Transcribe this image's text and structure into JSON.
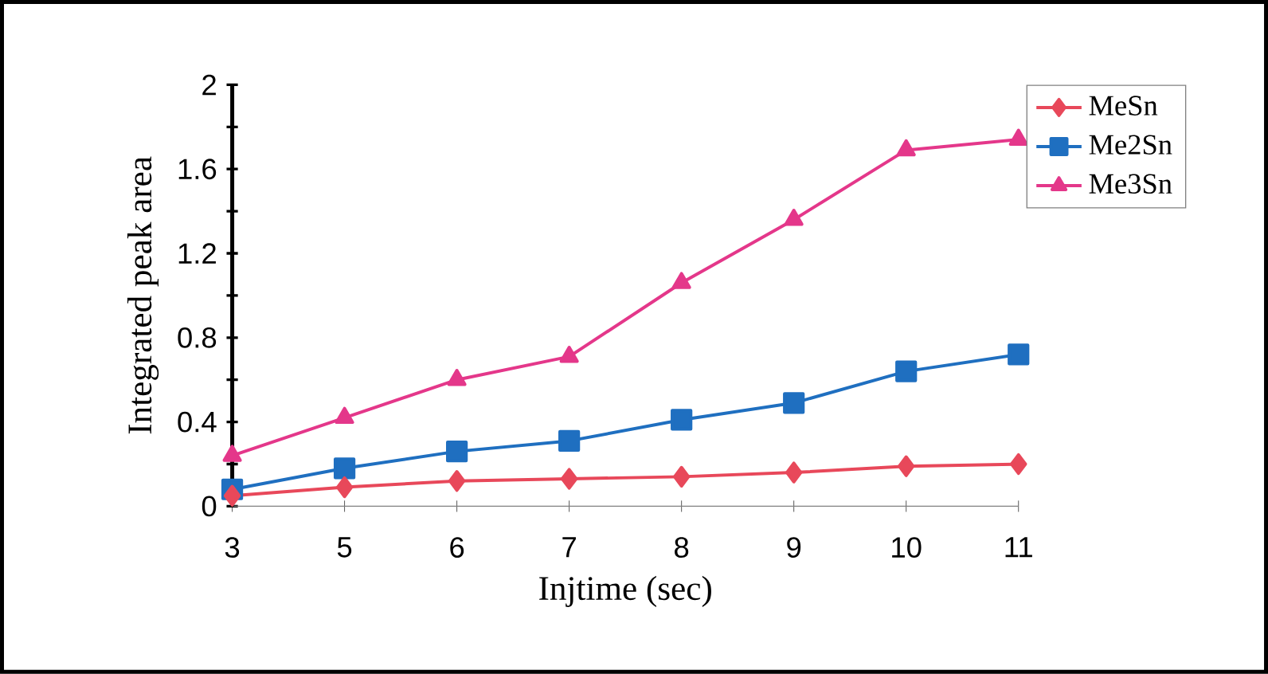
{
  "chart_data": {
    "type": "line",
    "xlabel": "Injtime (sec)",
    "ylabel": "Integrated peak area",
    "categories": [
      "3",
      "5",
      "6",
      "7",
      "8",
      "9",
      "10",
      "11"
    ],
    "series": [
      {
        "name": "MeSn",
        "color": "#e8485a",
        "marker": "diamond",
        "values": [
          0.05,
          0.09,
          0.12,
          0.13,
          0.14,
          0.16,
          0.19,
          0.2
        ]
      },
      {
        "name": "Me2Sn",
        "color": "#1f6fc0",
        "marker": "square",
        "values": [
          0.08,
          0.18,
          0.26,
          0.31,
          0.41,
          0.49,
          0.64,
          0.72
        ]
      },
      {
        "name": "Me3Sn",
        "color": "#e4378a",
        "marker": "triangle",
        "values": [
          0.24,
          0.42,
          0.6,
          0.71,
          1.06,
          1.36,
          1.69,
          1.74
        ]
      }
    ],
    "ylim": [
      0,
      2
    ],
    "yticks": [
      0,
      {
        "value": 0.2,
        "label": null
      },
      0.4,
      {
        "value": 0.6,
        "label": null
      },
      0.8,
      {
        "value": 1.0,
        "label": null
      },
      1.2,
      {
        "value": 1.4,
        "label": null
      },
      1.6,
      {
        "value": 1.8,
        "label": null
      },
      2
    ],
    "legend": "top right",
    "grid": false
  }
}
